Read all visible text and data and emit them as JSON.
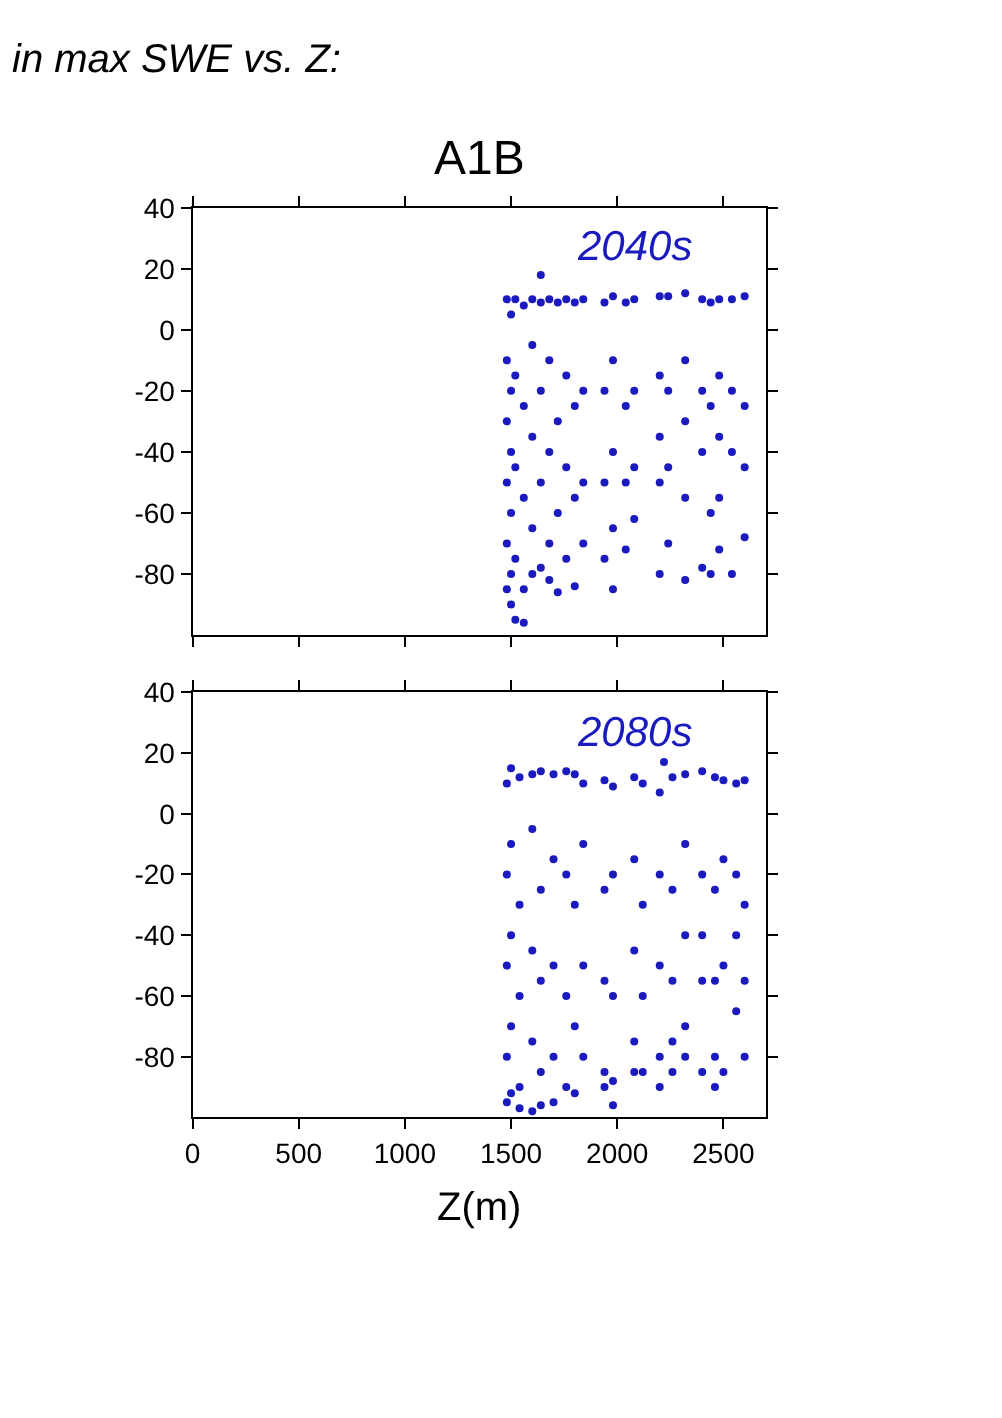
{
  "chart_data": [
    {
      "type": "scatter",
      "title": "in max SWE vs. Z:",
      "subtitle": "A1B",
      "annotations": [
        "2040s"
      ],
      "xlim": [
        0,
        2700
      ],
      "ylim": [
        -100,
        40
      ],
      "xticks": [
        0,
        500,
        1000,
        1500,
        2000,
        2500
      ],
      "yticks": [
        -80,
        -60,
        -40,
        -20,
        0,
        20,
        40
      ],
      "tick_labels": "y",
      "marker": "circle",
      "series": [
        {
          "color": "#1a1abf",
          "x": [
            1480,
            1480,
            1480,
            1480,
            1480,
            1480,
            1500,
            1500,
            1500,
            1500,
            1500,
            1500,
            1520,
            1520,
            1520,
            1520,
            1520,
            1560,
            1560,
            1560,
            1560,
            1560,
            1600,
            1600,
            1600,
            1600,
            1600,
            1640,
            1640,
            1640,
            1640,
            1640,
            1680,
            1680,
            1680,
            1680,
            1680,
            1720,
            1720,
            1720,
            1720,
            1760,
            1760,
            1760,
            1760,
            1800,
            1800,
            1800,
            1800,
            1840,
            1840,
            1840,
            1840,
            1940,
            1940,
            1940,
            1940,
            1980,
            1980,
            1980,
            1980,
            1980,
            2040,
            2040,
            2040,
            2040,
            2080,
            2080,
            2080,
            2080,
            2200,
            2200,
            2200,
            2200,
            2200,
            2240,
            2240,
            2240,
            2240,
            2320,
            2320,
            2320,
            2320,
            2320,
            2400,
            2400,
            2400,
            2400,
            2440,
            2440,
            2440,
            2440,
            2480,
            2480,
            2480,
            2480,
            2480,
            2540,
            2540,
            2540,
            2540,
            2600,
            2600,
            2600,
            2600
          ],
          "values": [
            10,
            -10,
            -30,
            -50,
            -70,
            -85,
            5,
            -20,
            -40,
            -60,
            -80,
            -90,
            10,
            -15,
            -45,
            -75,
            -95,
            8,
            -25,
            -55,
            -85,
            -96,
            10,
            -5,
            -35,
            -65,
            -80,
            18,
            9,
            -20,
            -50,
            -78,
            10,
            -10,
            -40,
            -70,
            -82,
            9,
            -30,
            -60,
            -86,
            10,
            -15,
            -45,
            -75,
            9,
            -25,
            -55,
            -84,
            10,
            -20,
            -50,
            -70,
            9,
            -20,
            -50,
            -75,
            11,
            -10,
            -40,
            -65,
            -85,
            9,
            -25,
            -50,
            -72,
            10,
            -20,
            -45,
            -62,
            11,
            -15,
            -35,
            -50,
            -80,
            11,
            -20,
            -45,
            -70,
            12,
            -10,
            -30,
            -55,
            -82,
            10,
            -20,
            -40,
            -78,
            9,
            -25,
            -60,
            -80,
            10,
            -15,
            -35,
            -55,
            -72,
            10,
            -20,
            -40,
            -80,
            11,
            -25,
            -45,
            -68
          ]
        }
      ]
    },
    {
      "type": "scatter",
      "xlabel": "Z(m)",
      "annotations": [
        "2080s"
      ],
      "xlim": [
        0,
        2700
      ],
      "ylim": [
        -100,
        40
      ],
      "xticks": [
        0,
        500,
        1000,
        1500,
        2000,
        2500
      ],
      "yticks": [
        -80,
        -60,
        -40,
        -20,
        0,
        20,
        40
      ],
      "marker": "circle",
      "series": [
        {
          "color": "#1a1abf",
          "x": [
            1480,
            1480,
            1480,
            1480,
            1480,
            1500,
            1500,
            1500,
            1500,
            1500,
            1540,
            1540,
            1540,
            1540,
            1540,
            1600,
            1600,
            1600,
            1600,
            1600,
            1640,
            1640,
            1640,
            1640,
            1640,
            1700,
            1700,
            1700,
            1700,
            1700,
            1760,
            1760,
            1760,
            1760,
            1800,
            1800,
            1800,
            1800,
            1840,
            1840,
            1840,
            1840,
            1940,
            1940,
            1940,
            1940,
            1940,
            1980,
            1980,
            1980,
            1980,
            1980,
            2080,
            2080,
            2080,
            2080,
            2080,
            2120,
            2120,
            2120,
            2120,
            2200,
            2200,
            2200,
            2200,
            2200,
            2220,
            2260,
            2260,
            2260,
            2260,
            2260,
            2320,
            2320,
            2320,
            2320,
            2320,
            2400,
            2400,
            2400,
            2400,
            2400,
            2460,
            2460,
            2460,
            2460,
            2460,
            2500,
            2500,
            2500,
            2500,
            2560,
            2560,
            2560,
            2560,
            2600,
            2600,
            2600,
            2600
          ],
          "values": [
            10,
            -20,
            -50,
            -80,
            -95,
            15,
            -10,
            -40,
            -70,
            -92,
            12,
            -30,
            -60,
            -90,
            -97,
            13,
            -5,
            -45,
            -75,
            -98,
            14,
            -25,
            -55,
            -85,
            -96,
            13,
            -15,
            -50,
            -80,
            -95,
            14,
            -20,
            -60,
            -90,
            13,
            -30,
            -70,
            -92,
            10,
            -10,
            -50,
            -80,
            11,
            -25,
            -55,
            -85,
            -90,
            9,
            -20,
            -60,
            -88,
            -96,
            12,
            -15,
            -45,
            -75,
            -85,
            10,
            -30,
            -60,
            -85,
            7,
            -20,
            -50,
            -80,
            -90,
            17,
            12,
            -25,
            -55,
            -75,
            -85,
            13,
            -10,
            -40,
            -70,
            -80,
            14,
            -20,
            -40,
            -55,
            -85,
            12,
            -25,
            -55,
            -80,
            -90,
            11,
            -15,
            -50,
            -85,
            10,
            -20,
            -40,
            -65,
            11,
            -30,
            -55,
            -80
          ]
        }
      ]
    }
  ]
}
